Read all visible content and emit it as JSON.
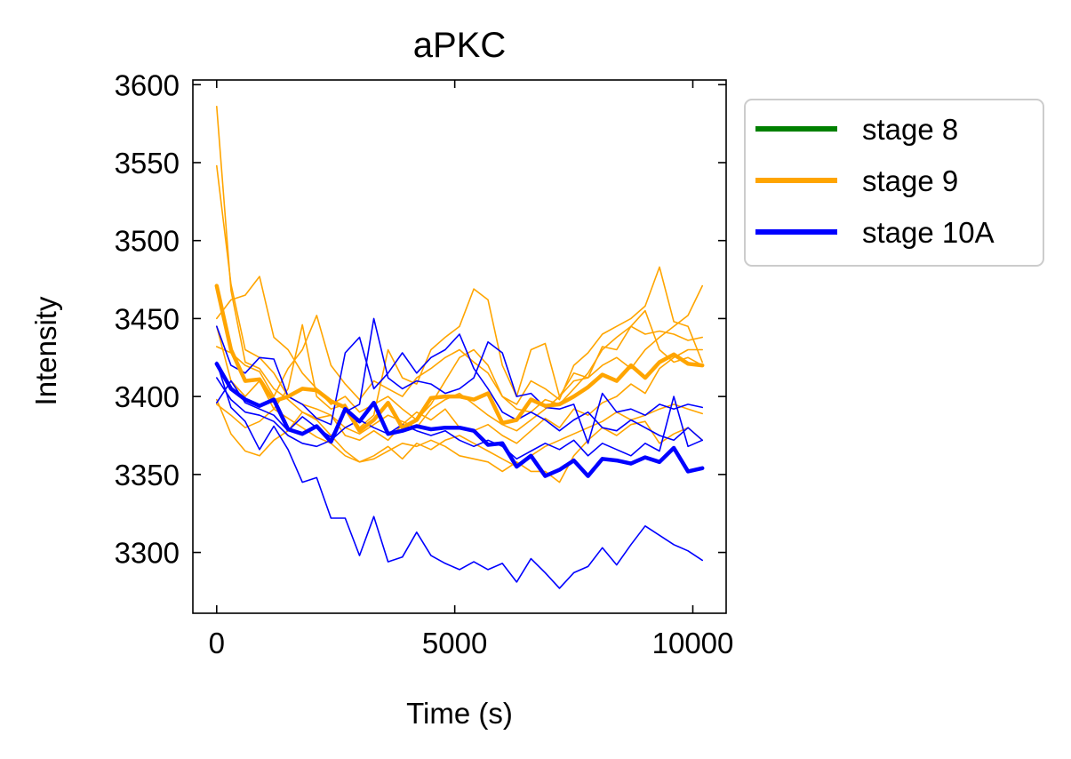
{
  "chart_data": {
    "type": "line",
    "title": "aPKC",
    "xlabel": "Time (s)",
    "ylabel": "Intensity",
    "xlim": [
      -500,
      10700
    ],
    "ylim": [
      3261,
      3603
    ],
    "xticks": [
      0,
      5000,
      10000
    ],
    "yticks": [
      3300,
      3350,
      3400,
      3450,
      3500,
      3550,
      3600
    ],
    "legend": {
      "position": "outside-right-top",
      "entries": [
        {
          "label": "stage 8",
          "color": "#008000"
        },
        {
          "label": "stage 9",
          "color": "#FFA500"
        },
        {
          "label": "stage 10A",
          "color": "#0000FF"
        }
      ]
    },
    "series": [
      {
        "group": "stage 9",
        "color": "#FFA500",
        "kind": "individual",
        "x": [
          0,
          300,
          600,
          900,
          1200,
          1500,
          1800,
          2100,
          2400,
          2700,
          3000,
          3300,
          3600,
          3900,
          4200,
          4500,
          4800,
          5100,
          5400,
          5700,
          6000,
          6300,
          6600,
          6900,
          7200,
          7500,
          7800,
          8100,
          8400,
          8700,
          9000,
          9300,
          9600,
          9900,
          10200
        ],
        "y": [
          3586,
          3468,
          3422,
          3418,
          3405,
          3398,
          3390,
          3386,
          3388,
          3375,
          3372,
          3378,
          3372,
          3382,
          3390,
          3385,
          3392,
          3380,
          3378,
          3382,
          3375,
          3370,
          3378,
          3386,
          3380,
          3392,
          3388,
          3396,
          3400,
          3408,
          3402,
          3418,
          3425,
          3430,
          3430
        ]
      },
      {
        "group": "stage 9",
        "color": "#FFA500",
        "kind": "individual",
        "x": [
          0,
          300,
          600,
          900,
          1200,
          1500,
          1800,
          2100,
          2400,
          2700,
          3000,
          3300,
          3600,
          3900,
          4200,
          4500,
          4800,
          5100,
          5400,
          5700,
          6000,
          6300,
          6600,
          6900,
          7200,
          7500,
          7800,
          8100,
          8400,
          8700,
          9000,
          9300,
          9600,
          9900,
          10200
        ],
        "y": [
          3548,
          3472,
          3430,
          3425,
          3415,
          3400,
          3395,
          3392,
          3388,
          3380,
          3376,
          3382,
          3388,
          3384,
          3380,
          3392,
          3398,
          3402,
          3395,
          3388,
          3382,
          3378,
          3385,
          3392,
          3400,
          3410,
          3412,
          3420,
          3425,
          3418,
          3430,
          3438,
          3445,
          3452,
          3471
        ]
      },
      {
        "group": "stage 9",
        "color": "#FFA500",
        "kind": "individual",
        "x": [
          0,
          300,
          600,
          900,
          1200,
          1500,
          1800,
          2100,
          2400,
          2700,
          3000,
          3300,
          3600,
          3900,
          4200,
          4500,
          4800,
          5100,
          5400,
          5700,
          6000,
          6300,
          6600,
          6900,
          7200,
          7500,
          7800,
          8100,
          8400,
          8700,
          9000,
          9300,
          9600,
          9900,
          10200
        ],
        "y": [
          3450,
          3462,
          3465,
          3477,
          3438,
          3430,
          3415,
          3405,
          3395,
          3400,
          3390,
          3395,
          3400,
          3392,
          3385,
          3395,
          3410,
          3425,
          3430,
          3420,
          3400,
          3392,
          3390,
          3398,
          3395,
          3405,
          3415,
          3430,
          3438,
          3445,
          3440,
          3442,
          3440,
          3436,
          3438
        ]
      },
      {
        "group": "stage 9",
        "color": "#FFA500",
        "kind": "individual",
        "x": [
          0,
          300,
          600,
          900,
          1200,
          1500,
          1800,
          2100,
          2400,
          2700,
          3000,
          3300,
          3600,
          3900,
          4200,
          4500,
          4800,
          5100,
          5400,
          5700,
          6000,
          6300,
          6600,
          6900,
          7200,
          7500,
          7800,
          8100,
          8400,
          8700,
          9000,
          9300,
          9600,
          9900,
          10200
        ],
        "y": [
          3445,
          3410,
          3400,
          3410,
          3392,
          3405,
          3446,
          3400,
          3392,
          3395,
          3380,
          3388,
          3430,
          3412,
          3408,
          3430,
          3438,
          3445,
          3469,
          3462,
          3420,
          3400,
          3430,
          3434,
          3400,
          3415,
          3412,
          3432,
          3430,
          3445,
          3455,
          3430,
          3422,
          3425,
          3420
        ]
      },
      {
        "group": "stage 9",
        "color": "#FFA500",
        "kind": "individual",
        "x": [
          0,
          300,
          600,
          900,
          1200,
          1500,
          1800,
          2100,
          2400,
          2700,
          3000,
          3300,
          3600,
          3900,
          4200,
          4500,
          4800,
          5100,
          5400,
          5700,
          6000,
          6300,
          6600,
          6900,
          7200,
          7500,
          7800,
          8100,
          8400,
          8700,
          9000,
          9300,
          9600,
          9900,
          10200
        ],
        "y": [
          3432,
          3428,
          3420,
          3416,
          3400,
          3418,
          3430,
          3452,
          3420,
          3408,
          3398,
          3410,
          3405,
          3400,
          3412,
          3418,
          3425,
          3430,
          3422,
          3415,
          3400,
          3395,
          3410,
          3405,
          3398,
          3420,
          3428,
          3440,
          3445,
          3450,
          3458,
          3483,
          3448,
          3445,
          3422
        ]
      },
      {
        "group": "stage 9",
        "color": "#FFA500",
        "kind": "individual",
        "x": [
          0,
          300,
          600,
          900,
          1200,
          1500,
          1800,
          2100,
          2400,
          2700,
          3000,
          3300,
          3600,
          3900,
          4200,
          4500,
          4800,
          5100,
          5400,
          5700,
          6000,
          6300,
          6600,
          6900,
          7200,
          7500,
          7800,
          8100,
          8400,
          8700,
          9000,
          9300,
          9600,
          9900,
          10200
        ],
        "y": [
          3398,
          3376,
          3365,
          3362,
          3372,
          3378,
          3390,
          3385,
          3375,
          3365,
          3358,
          3360,
          3365,
          3370,
          3368,
          3372,
          3368,
          3362,
          3360,
          3358,
          3352,
          3358,
          3352,
          3352,
          3345,
          3362,
          3372,
          3380,
          3375,
          3382,
          3384,
          3370,
          3376,
          3380,
          3372
        ]
      },
      {
        "group": "stage 9",
        "color": "#FFA500",
        "kind": "individual",
        "x": [
          0,
          300,
          600,
          900,
          1200,
          1500,
          1800,
          2100,
          2400,
          2700,
          3000,
          3300,
          3600,
          3900,
          4200,
          4500,
          4800,
          5100,
          5400,
          5700,
          6000,
          6300,
          6600,
          6900,
          7200,
          7500,
          7800,
          8100,
          8400,
          8700,
          9000,
          9300,
          9600,
          9900,
          10200
        ],
        "y": [
          3395,
          3388,
          3380,
          3384,
          3392,
          3386,
          3380,
          3374,
          3370,
          3362,
          3358,
          3362,
          3368,
          3360,
          3370,
          3366,
          3372,
          3375,
          3370,
          3365,
          3360,
          3355,
          3362,
          3368,
          3372,
          3376,
          3380,
          3384,
          3390,
          3385,
          3388,
          3392,
          3395,
          3392,
          3389
        ]
      },
      {
        "group": "stage 9",
        "color": "#FFA500",
        "kind": "mean",
        "x": [
          0,
          300,
          600,
          900,
          1200,
          1500,
          1800,
          2100,
          2400,
          2700,
          3000,
          3300,
          3600,
          3900,
          4200,
          4500,
          4800,
          5100,
          5400,
          5700,
          6000,
          6300,
          6600,
          6900,
          7200,
          7500,
          7800,
          8100,
          8400,
          8700,
          9000,
          9300,
          9600,
          9900,
          10200
        ],
        "y": [
          3471,
          3430,
          3410,
          3411,
          3397,
          3400,
          3405,
          3404,
          3397,
          3393,
          3378,
          3385,
          3396,
          3380,
          3385,
          3399,
          3400,
          3400,
          3398,
          3402,
          3383,
          3385,
          3398,
          3394,
          3395,
          3400,
          3406,
          3414,
          3410,
          3420,
          3412,
          3422,
          3427,
          3421,
          3420
        ]
      },
      {
        "group": "stage 10A",
        "color": "#0000FF",
        "kind": "individual",
        "x": [
          0,
          300,
          600,
          900,
          1200,
          1500,
          1800,
          2100,
          2400,
          2700,
          3000,
          3300,
          3600,
          3900,
          4200,
          4500,
          4800,
          5100,
          5400,
          5700,
          6000,
          6300,
          6600,
          6900,
          7200,
          7500,
          7800,
          8100,
          8400,
          8700,
          9000,
          9300,
          9600,
          9900,
          10200
        ],
        "y": [
          3422,
          3393,
          3384,
          3366,
          3381,
          3366,
          3345,
          3348,
          3322,
          3322,
          3298,
          3323,
          3294,
          3297,
          3313,
          3298,
          3293,
          3289,
          3294,
          3289,
          3293,
          3281,
          3296,
          3287,
          3277,
          3287,
          3291,
          3303,
          3292,
          3305,
          3317,
          3311,
          3305,
          3301,
          3295
        ]
      },
      {
        "group": "stage 10A",
        "color": "#0000FF",
        "kind": "individual",
        "x": [
          0,
          300,
          600,
          900,
          1200,
          1500,
          1800,
          2100,
          2400,
          2700,
          3000,
          3300,
          3600,
          3900,
          4200,
          4500,
          4800,
          5100,
          5400,
          5700,
          6000,
          6300,
          6600,
          6900,
          7200,
          7500,
          7800,
          8100,
          8400,
          8700,
          9000,
          9300,
          9600,
          9900,
          10200
        ],
        "y": [
          3445,
          3420,
          3415,
          3425,
          3424,
          3400,
          3395,
          3386,
          3382,
          3428,
          3438,
          3405,
          3415,
          3428,
          3415,
          3425,
          3430,
          3440,
          3418,
          3405,
          3390,
          3385,
          3390,
          3385,
          3378,
          3385,
          3390,
          3380,
          3378,
          3385,
          3380,
          3375,
          3372,
          3380,
          3372
        ]
      },
      {
        "group": "stage 10A",
        "color": "#0000FF",
        "kind": "individual",
        "x": [
          0,
          300,
          600,
          900,
          1200,
          1500,
          1800,
          2100,
          2400,
          2700,
          3000,
          3300,
          3600,
          3900,
          4200,
          4500,
          4800,
          5100,
          5400,
          5700,
          6000,
          6300,
          6600,
          6900,
          7200,
          7500,
          7800,
          8100,
          8400,
          8700,
          9000,
          9300,
          9600,
          9900,
          10200
        ],
        "y": [
          3396,
          3410,
          3396,
          3392,
          3388,
          3378,
          3387,
          3380,
          3374,
          3390,
          3395,
          3450,
          3412,
          3405,
          3410,
          3408,
          3402,
          3405,
          3412,
          3435,
          3428,
          3400,
          3402,
          3393,
          3392,
          3395,
          3370,
          3402,
          3390,
          3392,
          3388,
          3395,
          3392,
          3395,
          3393
        ]
      },
      {
        "group": "stage 10A",
        "color": "#0000FF",
        "kind": "individual",
        "x": [
          0,
          300,
          600,
          900,
          1200,
          1500,
          1800,
          2100,
          2400,
          2700,
          3000,
          3300,
          3600,
          3900,
          4200,
          4500,
          4800,
          5100,
          5400,
          5700,
          6000,
          6300,
          6600,
          6900,
          7200,
          7500,
          7800,
          8100,
          8400,
          8700,
          9000,
          9300,
          9600,
          9900,
          10200
        ],
        "y": [
          3412,
          3398,
          3390,
          3388,
          3384,
          3375,
          3370,
          3368,
          3372,
          3380,
          3385,
          3380,
          3376,
          3382,
          3378,
          3375,
          3378,
          3372,
          3368,
          3372,
          3368,
          3360,
          3365,
          3370,
          3366,
          3372,
          3362,
          3370,
          3366,
          3362,
          3370,
          3365,
          3400,
          3368,
          3372
        ]
      },
      {
        "group": "stage 10A",
        "color": "#0000FF",
        "kind": "mean",
        "x": [
          0,
          300,
          600,
          900,
          1200,
          1500,
          1800,
          2100,
          2400,
          2700,
          3000,
          3300,
          3600,
          3900,
          4200,
          4500,
          4800,
          5100,
          5400,
          5700,
          6000,
          6300,
          6600,
          6900,
          7200,
          7500,
          7800,
          8100,
          8400,
          8700,
          9000,
          9300,
          9600,
          9900,
          10200
        ],
        "y": [
          3421,
          3405,
          3398,
          3394,
          3398,
          3379,
          3376,
          3381,
          3371,
          3392,
          3384,
          3396,
          3376,
          3378,
          3381,
          3379,
          3380,
          3380,
          3378,
          3369,
          3370,
          3355,
          3362,
          3349,
          3353,
          3359,
          3349,
          3360,
          3359,
          3357,
          3361,
          3358,
          3367,
          3352,
          3354
        ]
      }
    ]
  }
}
